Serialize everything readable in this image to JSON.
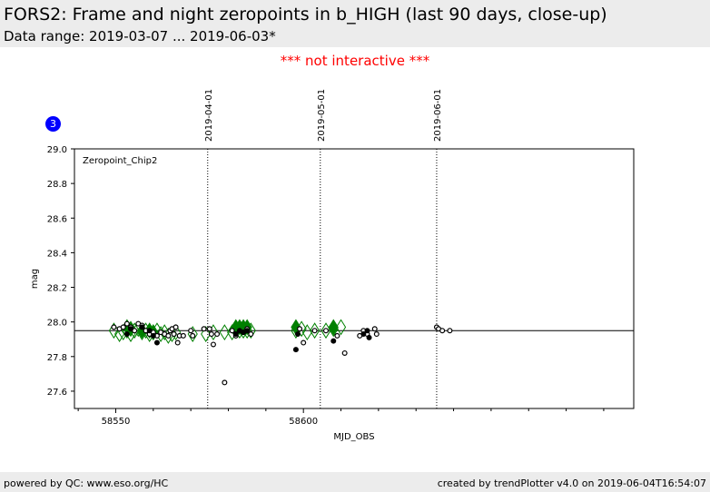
{
  "header": {
    "title": "FORS2: Frame and night zeropoints in b_HIGH (last 90 days, close-up)",
    "subtitle": "Data range: 2019-03-07 ... 2019-06-03*"
  },
  "notice": "*** not interactive ***",
  "badge": "3",
  "footer": {
    "left": "powered by QC: www.eso.org/HC",
    "right": "created by trendPlotter v4.0 on 2019-06-04T16:54:07"
  },
  "colors": {
    "frame": "#008000",
    "night": "#000000",
    "notice": "#ff0000",
    "badge": "#0000ff"
  },
  "chart_data": {
    "type": "scatter",
    "panel_label": "Zeropoint_Chip2",
    "xlabel": "MJD_OBS",
    "ylabel": "mag",
    "xlim": [
      58539,
      58688
    ],
    "ylim": [
      27.5,
      29.0
    ],
    "x_ticks": [
      58550,
      58600
    ],
    "y_ticks": [
      "27.6",
      "27.8",
      "28.0",
      "28.2",
      "28.4",
      "28.6",
      "28.8",
      "29.0"
    ],
    "reference_line": 27.95,
    "date_markers": [
      {
        "label": "2019-04-01",
        "mjd": 58574.5
      },
      {
        "label": "2019-05-01",
        "mjd": 58604.5
      },
      {
        "label": "2019-06-01",
        "mjd": 58635.5
      }
    ],
    "series": [
      {
        "marker": "diamond-open",
        "color": "#008000",
        "points": [
          [
            58549.5,
            27.95
          ],
          [
            58551,
            27.93
          ],
          [
            58552,
            27.94
          ],
          [
            58553,
            27.95
          ],
          [
            58554,
            27.93
          ],
          [
            58555,
            27.95
          ],
          [
            58556,
            27.96
          ],
          [
            58557,
            27.94
          ],
          [
            58558,
            27.95
          ],
          [
            58559,
            27.93
          ],
          [
            58560,
            27.94
          ],
          [
            58561,
            27.95
          ],
          [
            58562,
            27.93
          ],
          [
            58563,
            27.94
          ],
          [
            58564,
            27.92
          ],
          [
            58565,
            27.93
          ],
          [
            58566,
            27.94
          ],
          [
            58570.5,
            27.93
          ],
          [
            58574,
            27.93
          ],
          [
            58576,
            27.94
          ],
          [
            58579,
            27.94
          ],
          [
            58581,
            27.94
          ],
          [
            58582,
            27.95
          ],
          [
            58583,
            27.95
          ],
          [
            58584,
            27.95
          ],
          [
            58585,
            27.95
          ],
          [
            58586,
            27.95
          ],
          [
            58598,
            27.95
          ],
          [
            58599.5,
            27.96
          ],
          [
            58601,
            27.94
          ],
          [
            58603,
            27.95
          ],
          [
            58606,
            27.95
          ],
          [
            58608,
            27.96
          ],
          [
            58610,
            27.97
          ]
        ]
      },
      {
        "marker": "diamond-filled",
        "color": "#008000",
        "points": [
          [
            58553,
            27.97
          ],
          [
            58554,
            27.96
          ],
          [
            58557,
            27.95
          ],
          [
            58559,
            27.95
          ],
          [
            58560,
            27.94
          ],
          [
            58582,
            27.97
          ],
          [
            58583,
            27.97
          ],
          [
            58584,
            27.97
          ],
          [
            58585,
            27.97
          ],
          [
            58598,
            27.97
          ],
          [
            58608,
            27.97
          ]
        ]
      },
      {
        "marker": "circle-open",
        "color": "#000000",
        "points": [
          [
            58549.5,
            27.97
          ],
          [
            58551,
            27.96
          ],
          [
            58552,
            27.97
          ],
          [
            58553,
            27.99
          ],
          [
            58554,
            27.97
          ],
          [
            58555,
            27.95
          ],
          [
            58556,
            27.99
          ],
          [
            58557,
            27.98
          ],
          [
            58558,
            27.95
          ],
          [
            58559,
            27.93
          ],
          [
            58560,
            27.94
          ],
          [
            58561,
            27.92
          ],
          [
            58562,
            27.94
          ],
          [
            58563,
            27.93
          ],
          [
            58564,
            27.92
          ],
          [
            58564.5,
            27.95
          ],
          [
            58565,
            27.96
          ],
          [
            58565.5,
            27.93
          ],
          [
            58566,
            27.97
          ],
          [
            58566.5,
            27.88
          ],
          [
            58567,
            27.92
          ],
          [
            58568,
            27.92
          ],
          [
            58570,
            27.95
          ],
          [
            58570.5,
            27.92
          ],
          [
            58573.5,
            27.96
          ],
          [
            58575,
            27.96
          ],
          [
            58575.5,
            27.93
          ],
          [
            58576,
            27.87
          ],
          [
            58577,
            27.93
          ],
          [
            58579,
            27.65
          ],
          [
            58581,
            27.95
          ],
          [
            58582,
            27.92
          ],
          [
            58584,
            27.94
          ],
          [
            58585,
            27.96
          ],
          [
            58586,
            27.93
          ],
          [
            58599,
            27.96
          ],
          [
            58600,
            27.88
          ],
          [
            58603,
            27.95
          ],
          [
            58606,
            27.95
          ],
          [
            58609,
            27.92
          ],
          [
            58611,
            27.82
          ],
          [
            58615,
            27.92
          ],
          [
            58616,
            27.95
          ],
          [
            58617,
            27.93
          ],
          [
            58619,
            27.96
          ],
          [
            58619.5,
            27.93
          ],
          [
            58635.5,
            27.97
          ],
          [
            58636,
            27.96
          ],
          [
            58637,
            27.95
          ],
          [
            58639,
            27.95
          ]
        ]
      },
      {
        "marker": "circle-filled",
        "color": "#000000",
        "points": [
          [
            58553,
            27.93
          ],
          [
            58554,
            27.96
          ],
          [
            58557,
            27.97
          ],
          [
            58559,
            27.95
          ],
          [
            58560,
            27.92
          ],
          [
            58561,
            27.88
          ],
          [
            58582,
            27.93
          ],
          [
            58583,
            27.95
          ],
          [
            58584,
            27.94
          ],
          [
            58585,
            27.95
          ],
          [
            58598,
            27.84
          ],
          [
            58598.5,
            27.93
          ],
          [
            58608,
            27.89
          ],
          [
            58616,
            27.93
          ],
          [
            58617,
            27.95
          ],
          [
            58617.5,
            27.91
          ]
        ]
      }
    ]
  }
}
